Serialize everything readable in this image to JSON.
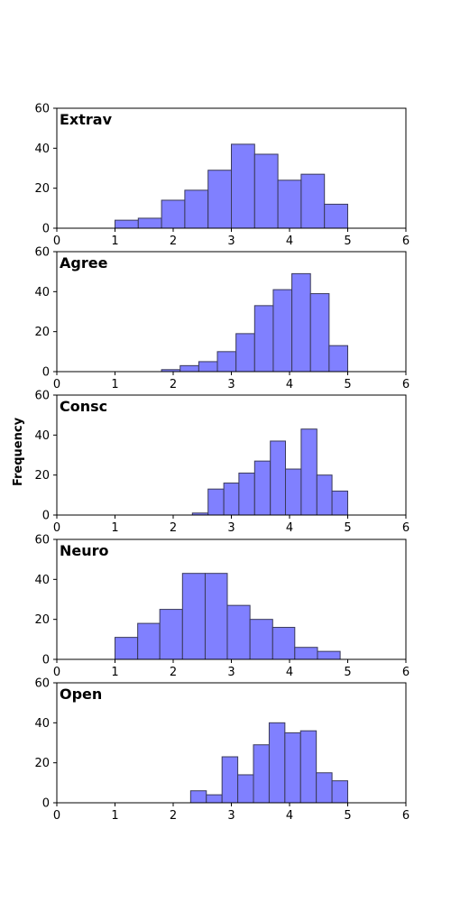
{
  "ylabel": "Frequency",
  "colors": {
    "bar_fill": "#8080ff",
    "bar_edge": "#3a3a5a",
    "axis": "#000000"
  },
  "chart_data": [
    {
      "type": "bar",
      "title": "Extrav",
      "xlim": [
        0,
        6
      ],
      "ylim": [
        0,
        60
      ],
      "xticks": [
        "0",
        "1",
        "2",
        "3",
        "4",
        "5",
        "6"
      ],
      "yticks": [
        "0",
        "20",
        "40",
        "60"
      ],
      "bins": [
        {
          "start": 1.0,
          "end": 1.4,
          "value": 4
        },
        {
          "start": 1.4,
          "end": 1.8,
          "value": 5
        },
        {
          "start": 1.8,
          "end": 2.2,
          "value": 14
        },
        {
          "start": 2.2,
          "end": 2.6,
          "value": 19
        },
        {
          "start": 2.6,
          "end": 3.0,
          "value": 29
        },
        {
          "start": 3.0,
          "end": 3.4,
          "value": 42
        },
        {
          "start": 3.4,
          "end": 3.8,
          "value": 37
        },
        {
          "start": 3.8,
          "end": 4.2,
          "value": 24
        },
        {
          "start": 4.2,
          "end": 4.6,
          "value": 27
        },
        {
          "start": 4.6,
          "end": 5.0,
          "value": 12
        }
      ]
    },
    {
      "type": "bar",
      "title": "Agree",
      "xlim": [
        0,
        6
      ],
      "ylim": [
        0,
        60
      ],
      "xticks": [
        "0",
        "1",
        "2",
        "3",
        "4",
        "5",
        "6"
      ],
      "yticks": [
        "0",
        "20",
        "40",
        "60"
      ],
      "bins": [
        {
          "start": 1.8,
          "end": 2.12,
          "value": 1
        },
        {
          "start": 2.12,
          "end": 2.44,
          "value": 3
        },
        {
          "start": 2.44,
          "end": 2.76,
          "value": 5
        },
        {
          "start": 2.76,
          "end": 3.08,
          "value": 10
        },
        {
          "start": 3.08,
          "end": 3.4,
          "value": 19
        },
        {
          "start": 3.4,
          "end": 3.72,
          "value": 33
        },
        {
          "start": 3.72,
          "end": 4.04,
          "value": 41
        },
        {
          "start": 4.04,
          "end": 4.36,
          "value": 49
        },
        {
          "start": 4.36,
          "end": 4.68,
          "value": 39
        },
        {
          "start": 4.68,
          "end": 5.0,
          "value": 13
        }
      ]
    },
    {
      "type": "bar",
      "title": "Consc",
      "xlim": [
        0,
        6
      ],
      "ylim": [
        0,
        60
      ],
      "xticks": [
        "0",
        "1",
        "2",
        "3",
        "4",
        "5",
        "6"
      ],
      "yticks": [
        "0",
        "20",
        "40",
        "60"
      ],
      "bins": [
        {
          "start": 2.33,
          "end": 2.6,
          "value": 1
        },
        {
          "start": 2.6,
          "end": 2.87,
          "value": 13
        },
        {
          "start": 2.87,
          "end": 3.13,
          "value": 16
        },
        {
          "start": 3.13,
          "end": 3.4,
          "value": 21
        },
        {
          "start": 3.4,
          "end": 3.67,
          "value": 27
        },
        {
          "start": 3.67,
          "end": 3.93,
          "value": 37
        },
        {
          "start": 3.93,
          "end": 4.2,
          "value": 23
        },
        {
          "start": 4.2,
          "end": 4.47,
          "value": 43
        },
        {
          "start": 4.47,
          "end": 4.73,
          "value": 20
        },
        {
          "start": 4.73,
          "end": 5.0,
          "value": 12
        }
      ]
    },
    {
      "type": "bar",
      "title": "Neuro",
      "xlim": [
        0,
        6
      ],
      "ylim": [
        0,
        60
      ],
      "xticks": [
        "0",
        "1",
        "2",
        "3",
        "4",
        "5",
        "6"
      ],
      "yticks": [
        "0",
        "20",
        "40",
        "60"
      ],
      "bins": [
        {
          "start": 1.0,
          "end": 1.39,
          "value": 11
        },
        {
          "start": 1.39,
          "end": 1.77,
          "value": 18
        },
        {
          "start": 1.77,
          "end": 2.16,
          "value": 25
        },
        {
          "start": 2.16,
          "end": 2.55,
          "value": 43
        },
        {
          "start": 2.55,
          "end": 2.93,
          "value": 43
        },
        {
          "start": 2.93,
          "end": 3.32,
          "value": 27
        },
        {
          "start": 3.32,
          "end": 3.71,
          "value": 20
        },
        {
          "start": 3.71,
          "end": 4.09,
          "value": 16
        },
        {
          "start": 4.09,
          "end": 4.48,
          "value": 6
        },
        {
          "start": 4.48,
          "end": 4.87,
          "value": 4
        }
      ]
    },
    {
      "type": "bar",
      "title": "Open",
      "xlim": [
        0,
        6
      ],
      "ylim": [
        0,
        60
      ],
      "xticks": [
        "0",
        "1",
        "2",
        "3",
        "4",
        "5",
        "6"
      ],
      "yticks": [
        "0",
        "20",
        "40",
        "60"
      ],
      "bins": [
        {
          "start": 2.3,
          "end": 2.57,
          "value": 6
        },
        {
          "start": 2.57,
          "end": 2.84,
          "value": 4
        },
        {
          "start": 2.84,
          "end": 3.11,
          "value": 23
        },
        {
          "start": 3.11,
          "end": 3.38,
          "value": 14
        },
        {
          "start": 3.38,
          "end": 3.65,
          "value": 29
        },
        {
          "start": 3.65,
          "end": 3.92,
          "value": 40
        },
        {
          "start": 3.92,
          "end": 4.19,
          "value": 35
        },
        {
          "start": 4.19,
          "end": 4.46,
          "value": 36
        },
        {
          "start": 4.46,
          "end": 4.73,
          "value": 15
        },
        {
          "start": 4.73,
          "end": 5.0,
          "value": 11
        }
      ]
    }
  ]
}
